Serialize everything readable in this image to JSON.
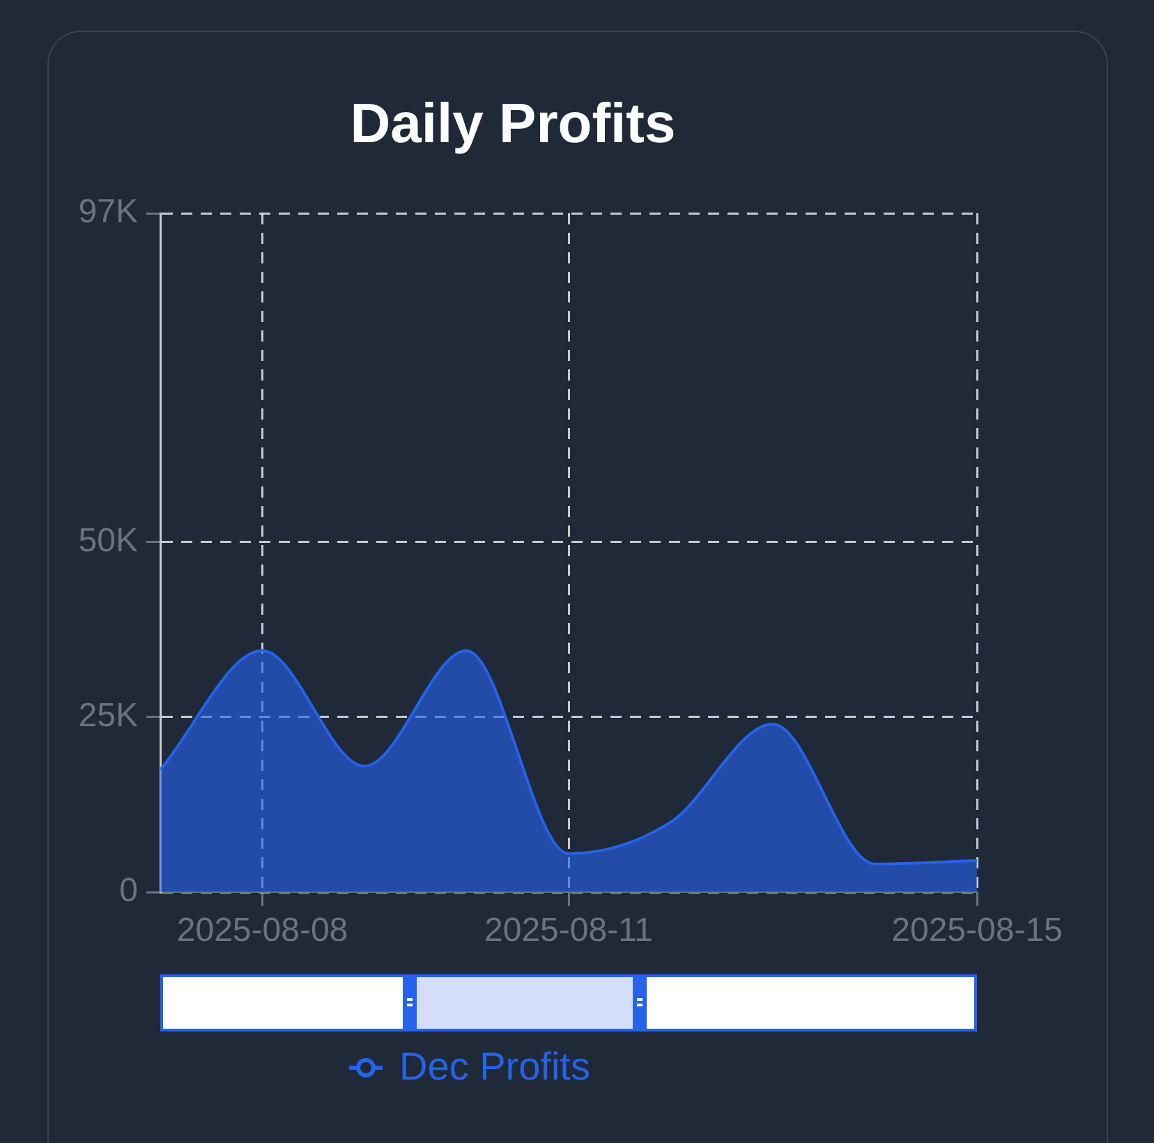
{
  "chart_data": {
    "type": "area",
    "title": "Daily Profits",
    "x": [
      "2025-08-07",
      "2025-08-08",
      "2025-08-09",
      "2025-08-10",
      "2025-08-11",
      "2025-08-12",
      "2025-08-13",
      "2025-08-14",
      "2025-08-15"
    ],
    "series": [
      {
        "name": "Dec Profits",
        "color": "#2563eb",
        "values": [
          17500,
          34500,
          18000,
          34500,
          5500,
          10000,
          24000,
          4000,
          4500
        ]
      }
    ],
    "xlim": [
      "2025-08-07",
      "2025-08-15"
    ],
    "xticks": [
      "2025-08-08",
      "2025-08-11",
      "2025-08-15"
    ],
    "ylim": [
      0,
      97000
    ],
    "yticks": [
      0,
      {
        "value": 25000,
        "label": "25K"
      },
      {
        "value": 50000,
        "label": "50K"
      },
      {
        "value": 97000,
        "label": "97K"
      }
    ],
    "grid": true,
    "legend": "bottom",
    "marker": "none"
  }
}
